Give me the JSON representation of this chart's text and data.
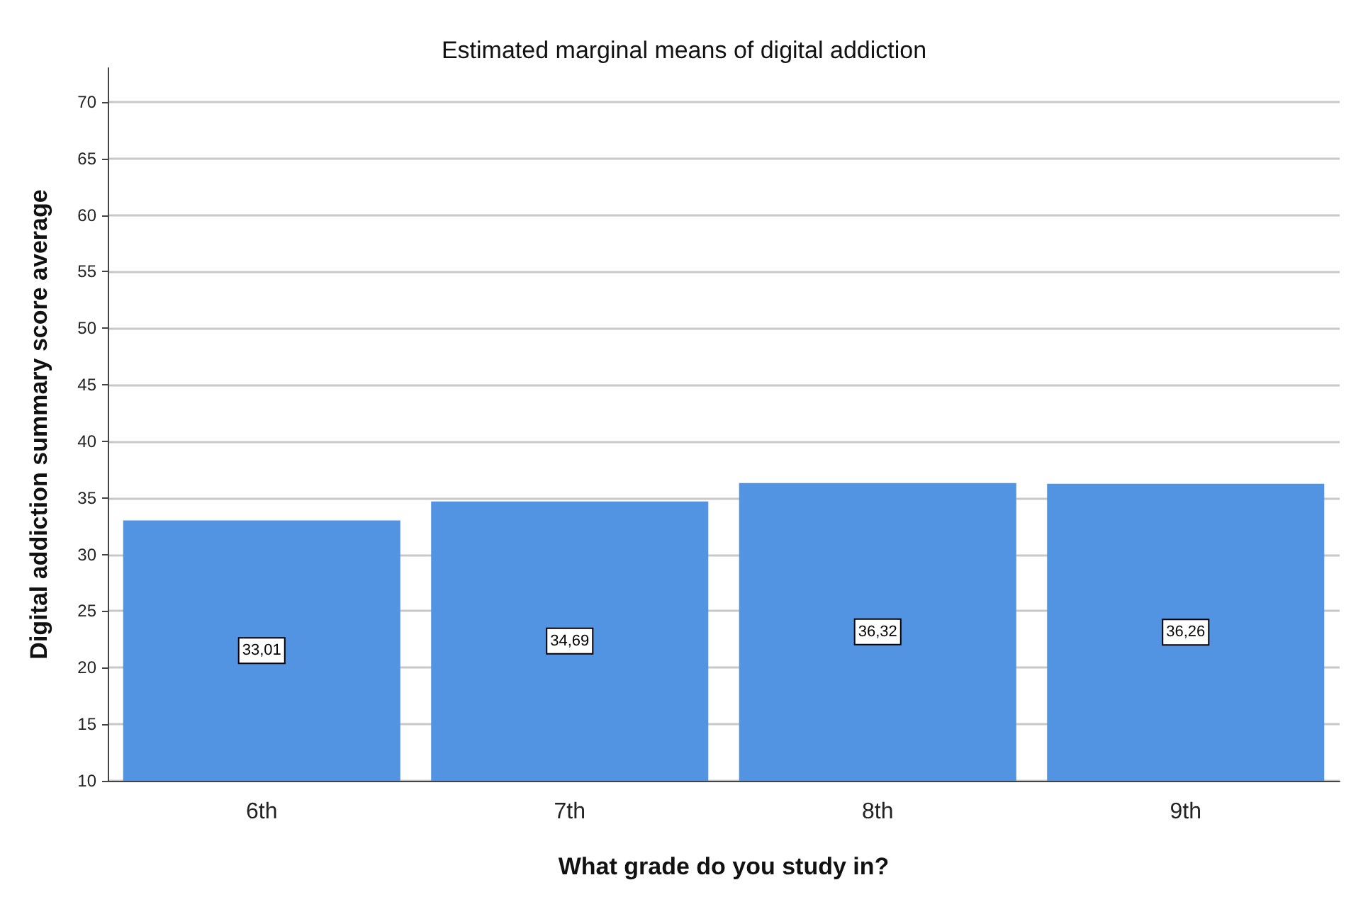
{
  "chart_data": {
    "type": "bar",
    "title": "Estimated marginal means of digital addiction",
    "xlabel": "What grade do you study in?",
    "ylabel": "Digital addiction summary score average",
    "categories": [
      "6th",
      "7th",
      "8th",
      "9th"
    ],
    "values": [
      33.01,
      34.69,
      36.32,
      36.26
    ],
    "value_labels": [
      "33,01",
      "34,69",
      "36,32",
      "36,26"
    ],
    "color": "#5294e2",
    "ylim": [
      10,
      73
    ],
    "yticks": [
      10,
      15,
      20,
      25,
      30,
      35,
      40,
      45,
      50,
      55,
      60,
      65,
      70
    ],
    "grid": "y"
  }
}
